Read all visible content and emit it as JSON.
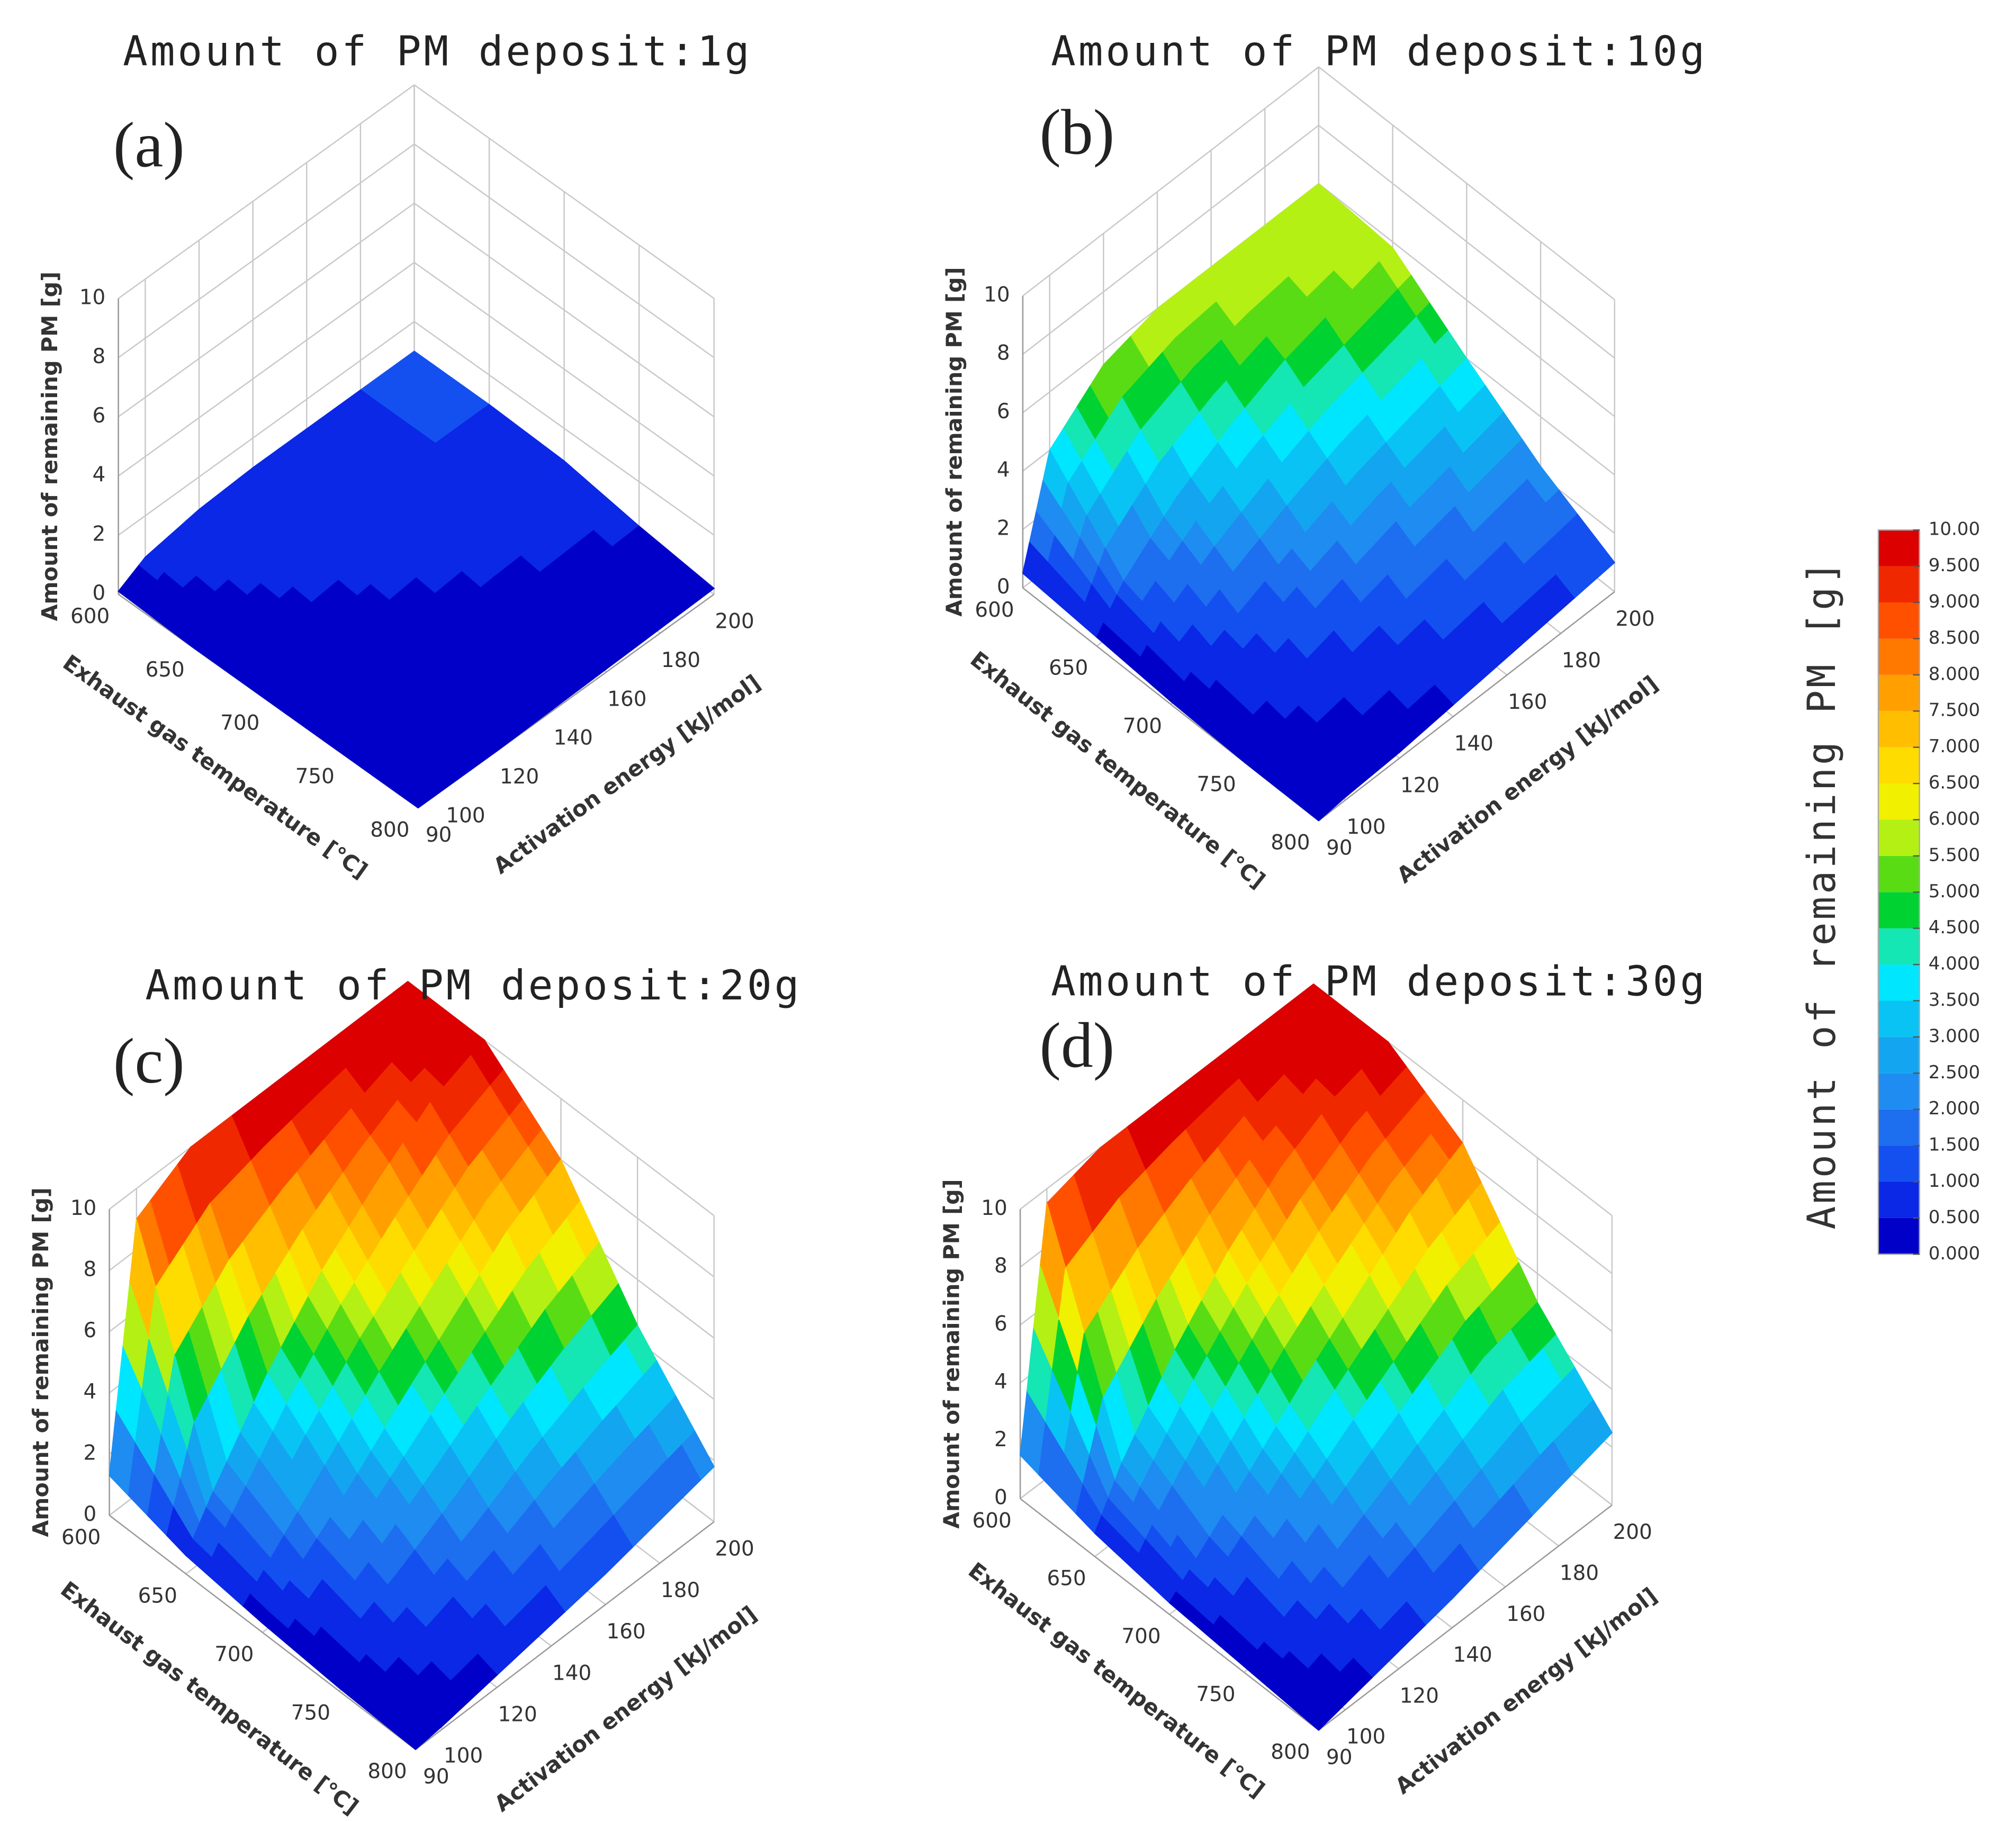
{
  "chart_data": [
    {
      "type": "surface3d",
      "title": "Amount of PM deposit:1g",
      "panel_label": "(a)",
      "xlabel": "Exhaust gas temperature [°C]",
      "ylabel": "Activation energy [kJ/mol]",
      "zlabel": "Amount of remaining PM [g]",
      "x": [
        600,
        650,
        700,
        750,
        800
      ],
      "y": [
        90,
        100,
        120,
        140,
        160,
        180,
        200
      ],
      "values": [
        [
          0.1,
          0.6,
          0.9,
          1,
          1,
          1,
          1
        ],
        [
          0,
          0.3,
          0.6,
          0.8,
          0.9,
          1,
          1
        ],
        [
          0,
          0.1,
          0.3,
          0.5,
          0.7,
          0.8,
          0.9
        ],
        [
          0,
          0,
          0.1,
          0.2,
          0.3,
          0.4,
          0.5
        ],
        [
          0,
          0,
          0,
          0.05,
          0.1,
          0.15,
          0.2
        ]
      ],
      "xlim": [
        600,
        800
      ],
      "xticks": [
        600,
        650,
        700,
        750,
        800
      ],
      "ylim": [
        90,
        200
      ],
      "yticks": [
        90,
        100,
        120,
        140,
        160,
        180,
        200
      ],
      "zlim": [
        0,
        10
      ],
      "zticks": [
        0,
        2,
        4,
        6,
        8,
        10
      ],
      "grid": true
    },
    {
      "type": "surface3d",
      "title": "Amount of PM deposit:10g",
      "panel_label": "(b)",
      "xlabel": "Exhaust gas temperature [°C]",
      "ylabel": "Activation energy [kJ/mol]",
      "zlabel": "Amount of remaining PM [g]",
      "x": [
        600,
        650,
        700,
        750,
        800
      ],
      "y": [
        90,
        100,
        120,
        140,
        160,
        180,
        200
      ],
      "values": [
        [
          0.5,
          4,
          5.5,
          6,
          6,
          6,
          6
        ],
        [
          0.3,
          1.5,
          3,
          4,
          4.8,
          5.3,
          5.8
        ],
        [
          0.1,
          0.7,
          1.5,
          2.3,
          3,
          3.5,
          4
        ],
        [
          0,
          0.3,
          0.7,
          1.1,
          1.5,
          1.9,
          2.3
        ],
        [
          0,
          0.1,
          0.2,
          0.4,
          0.6,
          0.8,
          1
        ]
      ],
      "xlim": [
        600,
        800
      ],
      "xticks": [
        600,
        650,
        700,
        750,
        800
      ],
      "ylim": [
        90,
        200
      ],
      "yticks": [
        90,
        100,
        120,
        140,
        160,
        180,
        200
      ],
      "zlim": [
        0,
        10
      ],
      "zticks": [
        0,
        2,
        4,
        6,
        8,
        10
      ],
      "grid": true
    },
    {
      "type": "surface3d",
      "title": "Amount of PM deposit:20g",
      "panel_label": "(c)",
      "xlabel": "Exhaust gas temperature [°C]",
      "ylabel": "Activation energy [kJ/mol]",
      "zlabel": "Amount of remaining PM [g]",
      "x": [
        600,
        650,
        700,
        750,
        800
      ],
      "y": [
        90,
        100,
        120,
        140,
        160,
        180,
        200
      ],
      "values": [
        [
          1.3,
          9,
          10,
          10,
          10,
          10,
          10
        ],
        [
          0.6,
          2,
          4.5,
          6.5,
          8,
          9.3,
          10
        ],
        [
          0.3,
          1,
          2.4,
          4,
          5.5,
          7,
          8
        ],
        [
          0.1,
          0.5,
          1.2,
          2,
          3,
          3.8,
          4.5
        ],
        [
          0,
          0.1,
          0.4,
          0.7,
          1,
          1.4,
          1.8
        ]
      ],
      "xlim": [
        600,
        800
      ],
      "xticks": [
        600,
        650,
        700,
        750,
        800
      ],
      "ylim": [
        90,
        200
      ],
      "yticks": [
        90,
        100,
        120,
        140,
        160,
        180,
        200
      ],
      "zlim": [
        0,
        10
      ],
      "zticks": [
        0,
        2,
        4,
        6,
        8,
        10
      ],
      "grid": true
    },
    {
      "type": "surface3d",
      "title": "Amount of PM deposit:30g",
      "panel_label": "(d)",
      "xlabel": "Exhaust gas temperature [°C]",
      "ylabel": "Activation energy [kJ/mol]",
      "zlabel": "Amount of remaining PM [g]",
      "x": [
        600,
        650,
        700,
        750,
        800
      ],
      "y": [
        90,
        100,
        120,
        140,
        160,
        180,
        200
      ],
      "values": [
        [
          1.5,
          9.5,
          10,
          10,
          10,
          10,
          10
        ],
        [
          0.8,
          2.5,
          5,
          7,
          8.5,
          9.5,
          10
        ],
        [
          0.4,
          1.2,
          2.8,
          4.5,
          6,
          7.5,
          8.5
        ],
        [
          0.2,
          0.6,
          1.5,
          2.5,
          3.5,
          4.5,
          5
        ],
        [
          0,
          0.2,
          0.6,
          1,
          1.5,
          2,
          2.5
        ]
      ],
      "xlim": [
        600,
        800
      ],
      "xticks": [
        600,
        650,
        700,
        750,
        800
      ],
      "ylim": [
        90,
        200
      ],
      "yticks": [
        90,
        100,
        120,
        140,
        160,
        180,
        200
      ],
      "zlim": [
        0,
        10
      ],
      "zticks": [
        0,
        2,
        4,
        6,
        8,
        10
      ],
      "grid": true
    }
  ],
  "colorbar": {
    "title": "Amount of remaining PM [g]",
    "colors": [
      "#0000c8",
      "#0a28e6",
      "#1450f0",
      "#1e6ef0",
      "#1e8cf0",
      "#14a5f0",
      "#0ac3f5",
      "#00e6ff",
      "#14e6b4",
      "#00d232",
      "#5adc14",
      "#b4f014",
      "#f0f000",
      "#ffdc00",
      "#ffbe00",
      "#ffa000",
      "#ff7800",
      "#ff5000",
      "#f02800",
      "#dc0000"
    ],
    "ticks": [
      {
        "value": 0,
        "label": "0.000"
      },
      {
        "value": 0.5,
        "label": "0.500"
      },
      {
        "value": 1,
        "label": "1.000"
      },
      {
        "value": 1.5,
        "label": "1.500"
      },
      {
        "value": 2,
        "label": "2.000"
      },
      {
        "value": 2.5,
        "label": "2.500"
      },
      {
        "value": 3,
        "label": "3.000"
      },
      {
        "value": 3.5,
        "label": "3.500"
      },
      {
        "value": 4,
        "label": "4.000"
      },
      {
        "value": 4.5,
        "label": "4.500"
      },
      {
        "value": 5,
        "label": "5.000"
      },
      {
        "value": 5.5,
        "label": "5.500"
      },
      {
        "value": 6,
        "label": "6.000"
      },
      {
        "value": 6.5,
        "label": "6.500"
      },
      {
        "value": 7,
        "label": "7.000"
      },
      {
        "value": 7.5,
        "label": "7.500"
      },
      {
        "value": 8,
        "label": "8.000"
      },
      {
        "value": 8.5,
        "label": "8.500"
      },
      {
        "value": 9,
        "label": "9.000"
      },
      {
        "value": 9.5,
        "label": "9.500"
      },
      {
        "value": 10,
        "label": "10.00"
      }
    ]
  }
}
